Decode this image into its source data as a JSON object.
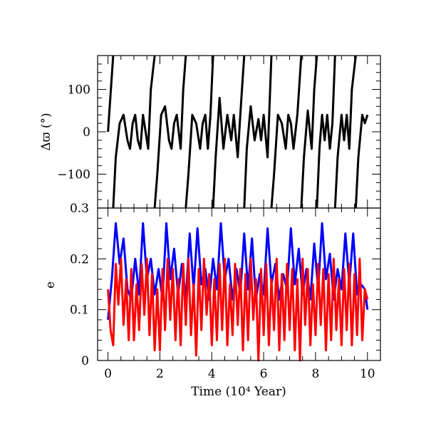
{
  "chart_data": [
    {
      "type": "line",
      "panel": "top",
      "ylabel": "Δϖ (°)",
      "ylim": [
        -180,
        180
      ],
      "yticks": [
        -100,
        0,
        100
      ],
      "ytick_labels": [
        "−100",
        "0",
        "100"
      ],
      "xlim": [
        -0.4,
        10.5
      ],
      "xticks": [
        0,
        2,
        4,
        6,
        8,
        10
      ],
      "grid": false,
      "series": [
        {
          "color": "#000000",
          "description": "resonant angle circulating / librating",
          "segments": [
            [
              [
                0.0,
                0
              ],
              [
                0.2,
                180
              ]
            ],
            [
              [
                0.2,
                -180
              ],
              [
                0.3,
                -60
              ],
              [
                0.45,
                20
              ],
              [
                0.6,
                40
              ],
              [
                0.75,
                -20
              ],
              [
                0.85,
                -40
              ],
              [
                0.95,
                20
              ],
              [
                1.05,
                40
              ],
              [
                1.15,
                -20
              ],
              [
                1.25,
                -40
              ],
              [
                1.35,
                40
              ],
              [
                1.45,
                0
              ],
              [
                1.55,
                -40
              ],
              [
                1.65,
                100
              ],
              [
                1.8,
                180
              ]
            ],
            [
              [
                1.8,
                -180
              ],
              [
                1.9,
                -100
              ],
              [
                2.05,
                40
              ],
              [
                2.2,
                60
              ],
              [
                2.35,
                -20
              ],
              [
                2.45,
                -40
              ],
              [
                2.55,
                20
              ],
              [
                2.65,
                40
              ],
              [
                2.8,
                -40
              ],
              [
                2.9,
                100
              ],
              [
                3.0,
                180
              ]
            ],
            [
              [
                3.0,
                -180
              ],
              [
                3.1,
                -100
              ],
              [
                3.25,
                40
              ],
              [
                3.4,
                20
              ],
              [
                3.55,
                -40
              ],
              [
                3.65,
                20
              ],
              [
                3.75,
                40
              ],
              [
                3.85,
                -40
              ],
              [
                3.95,
                40
              ],
              [
                4.05,
                180
              ]
            ],
            [
              [
                4.05,
                -180
              ],
              [
                4.15,
                -60
              ],
              [
                4.3,
                80
              ],
              [
                4.45,
                -40
              ],
              [
                4.6,
                40
              ],
              [
                4.75,
                -20
              ],
              [
                4.85,
                40
              ],
              [
                5.0,
                -60
              ],
              [
                5.1,
                40
              ],
              [
                5.25,
                180
              ]
            ],
            [
              [
                5.25,
                -180
              ],
              [
                5.35,
                -40
              ],
              [
                5.5,
                60
              ],
              [
                5.65,
                -20
              ],
              [
                5.8,
                30
              ],
              [
                5.9,
                -20
              ],
              [
                6.0,
                40
              ],
              [
                6.15,
                -60
              ],
              [
                6.3,
                180
              ]
            ],
            [
              [
                6.3,
                -180
              ],
              [
                6.4,
                -100
              ],
              [
                6.55,
                40
              ],
              [
                6.7,
                20
              ],
              [
                6.85,
                -40
              ],
              [
                6.95,
                40
              ],
              [
                7.05,
                20
              ],
              [
                7.15,
                -40
              ],
              [
                7.3,
                40
              ],
              [
                7.45,
                180
              ]
            ],
            [
              [
                7.45,
                -180
              ],
              [
                7.55,
                -60
              ],
              [
                7.7,
                50
              ],
              [
                7.85,
                -40
              ],
              [
                7.95,
                100
              ],
              [
                8.05,
                180
              ]
            ],
            [
              [
                8.05,
                -180
              ],
              [
                8.15,
                -40
              ],
              [
                8.25,
                40
              ],
              [
                8.35,
                -20
              ],
              [
                8.45,
                40
              ],
              [
                8.55,
                -40
              ],
              [
                8.65,
                20
              ],
              [
                8.75,
                180
              ]
            ],
            [
              [
                8.75,
                -180
              ],
              [
                8.85,
                -60
              ],
              [
                9.0,
                40
              ],
              [
                9.1,
                -20
              ],
              [
                9.2,
                40
              ],
              [
                9.3,
                -40
              ],
              [
                9.4,
                100
              ],
              [
                9.55,
                180
              ]
            ],
            [
              [
                9.55,
                -180
              ],
              [
                9.65,
                -60
              ],
              [
                9.8,
                40
              ],
              [
                9.9,
                20
              ],
              [
                10.0,
                40
              ]
            ]
          ]
        }
      ]
    },
    {
      "type": "line",
      "panel": "bottom",
      "xlabel": "Time (10⁴ Year)",
      "ylabel": "e",
      "ylim": [
        0,
        0.3
      ],
      "yticks": [
        0,
        0.1,
        0.2,
        0.3
      ],
      "ytick_labels": [
        "0",
        "0.1",
        "0.2",
        "0.3"
      ],
      "xlim": [
        -0.4,
        10.5
      ],
      "xticks": [
        0,
        2,
        4,
        6,
        8,
        10
      ],
      "xtick_labels": [
        "0",
        "2",
        "4",
        "6",
        "8",
        "10"
      ],
      "grid": false,
      "series": [
        {
          "color": "#0000ff",
          "x": [
            0.0,
            0.15,
            0.3,
            0.45,
            0.6,
            0.75,
            0.9,
            1.05,
            1.2,
            1.35,
            1.5,
            1.65,
            1.8,
            1.95,
            2.1,
            2.25,
            2.4,
            2.55,
            2.7,
            2.85,
            3.0,
            3.15,
            3.3,
            3.45,
            3.6,
            3.75,
            3.9,
            4.05,
            4.2,
            4.35,
            4.5,
            4.65,
            4.8,
            4.95,
            5.1,
            5.25,
            5.4,
            5.55,
            5.7,
            5.85,
            6.0,
            6.15,
            6.3,
            6.45,
            6.6,
            6.75,
            6.9,
            7.05,
            7.2,
            7.35,
            7.5,
            7.65,
            7.8,
            7.95,
            8.1,
            8.25,
            8.4,
            8.55,
            8.7,
            8.85,
            9.0,
            9.15,
            9.3,
            9.45,
            9.6,
            9.75,
            9.9,
            10.0
          ],
          "values": [
            0.08,
            0.16,
            0.27,
            0.19,
            0.24,
            0.14,
            0.12,
            0.2,
            0.13,
            0.27,
            0.16,
            0.2,
            0.13,
            0.18,
            0.12,
            0.27,
            0.16,
            0.22,
            0.13,
            0.19,
            0.12,
            0.25,
            0.14,
            0.26,
            0.15,
            0.18,
            0.12,
            0.2,
            0.14,
            0.27,
            0.16,
            0.2,
            0.12,
            0.18,
            0.13,
            0.25,
            0.14,
            0.24,
            0.12,
            0.17,
            0.13,
            0.26,
            0.15,
            0.19,
            0.12,
            0.17,
            0.14,
            0.26,
            0.15,
            0.22,
            0.13,
            0.18,
            0.12,
            0.23,
            0.14,
            0.27,
            0.16,
            0.21,
            0.12,
            0.18,
            0.14,
            0.25,
            0.15,
            0.25,
            0.13,
            0.15,
            0.14,
            0.1
          ]
        },
        {
          "color": "#ff0000",
          "x": [
            0.0,
            0.1,
            0.2,
            0.3,
            0.4,
            0.5,
            0.6,
            0.7,
            0.8,
            0.9,
            1.0,
            1.1,
            1.2,
            1.3,
            1.4,
            1.5,
            1.6,
            1.7,
            1.8,
            1.9,
            2.0,
            2.1,
            2.2,
            2.3,
            2.4,
            2.5,
            2.6,
            2.7,
            2.8,
            2.9,
            3.0,
            3.1,
            3.2,
            3.3,
            3.4,
            3.5,
            3.6,
            3.7,
            3.8,
            3.9,
            4.0,
            4.1,
            4.2,
            4.3,
            4.4,
            4.5,
            4.6,
            4.7,
            4.8,
            4.9,
            5.0,
            5.1,
            5.2,
            5.3,
            5.4,
            5.5,
            5.6,
            5.7,
            5.8,
            5.9,
            6.0,
            6.1,
            6.2,
            6.3,
            6.4,
            6.5,
            6.6,
            6.7,
            6.8,
            6.9,
            7.0,
            7.1,
            7.2,
            7.3,
            7.4,
            7.5,
            7.6,
            7.7,
            7.8,
            7.9,
            8.0,
            8.1,
            8.2,
            8.3,
            8.4,
            8.5,
            8.6,
            8.7,
            8.8,
            8.9,
            9.0,
            9.1,
            9.2,
            9.3,
            9.4,
            9.5,
            9.6,
            9.7,
            9.8,
            9.9,
            10.0
          ],
          "values": [
            0.14,
            0.06,
            0.03,
            0.19,
            0.11,
            0.2,
            0.07,
            0.16,
            0.04,
            0.18,
            0.04,
            0.15,
            0.06,
            0.19,
            0.09,
            0.2,
            0.05,
            0.17,
            0.02,
            0.14,
            0.02,
            0.18,
            0.06,
            0.2,
            0.08,
            0.18,
            0.04,
            0.16,
            0.03,
            0.19,
            0.07,
            0.2,
            0.05,
            0.15,
            0.01,
            0.18,
            0.06,
            0.2,
            0.09,
            0.17,
            0.03,
            0.16,
            0.04,
            0.19,
            0.06,
            0.2,
            0.03,
            0.15,
            0.05,
            0.19,
            0.07,
            0.18,
            0.02,
            0.17,
            0.04,
            0.2,
            0.08,
            0.16,
            0.0,
            0.18,
            0.05,
            0.19,
            0.03,
            0.16,
            0.06,
            0.2,
            0.02,
            0.17,
            0.04,
            0.19,
            0.06,
            0.18,
            0.02,
            0.16,
            0.0,
            0.2,
            0.07,
            0.18,
            0.03,
            0.15,
            0.05,
            0.19,
            0.07,
            0.18,
            0.02,
            0.17,
            0.04,
            0.2,
            0.06,
            0.16,
            0.03,
            0.18,
            0.06,
            0.19,
            0.03,
            0.17,
            0.05,
            0.2,
            0.04,
            0.14,
            0.12
          ]
        }
      ]
    }
  ]
}
